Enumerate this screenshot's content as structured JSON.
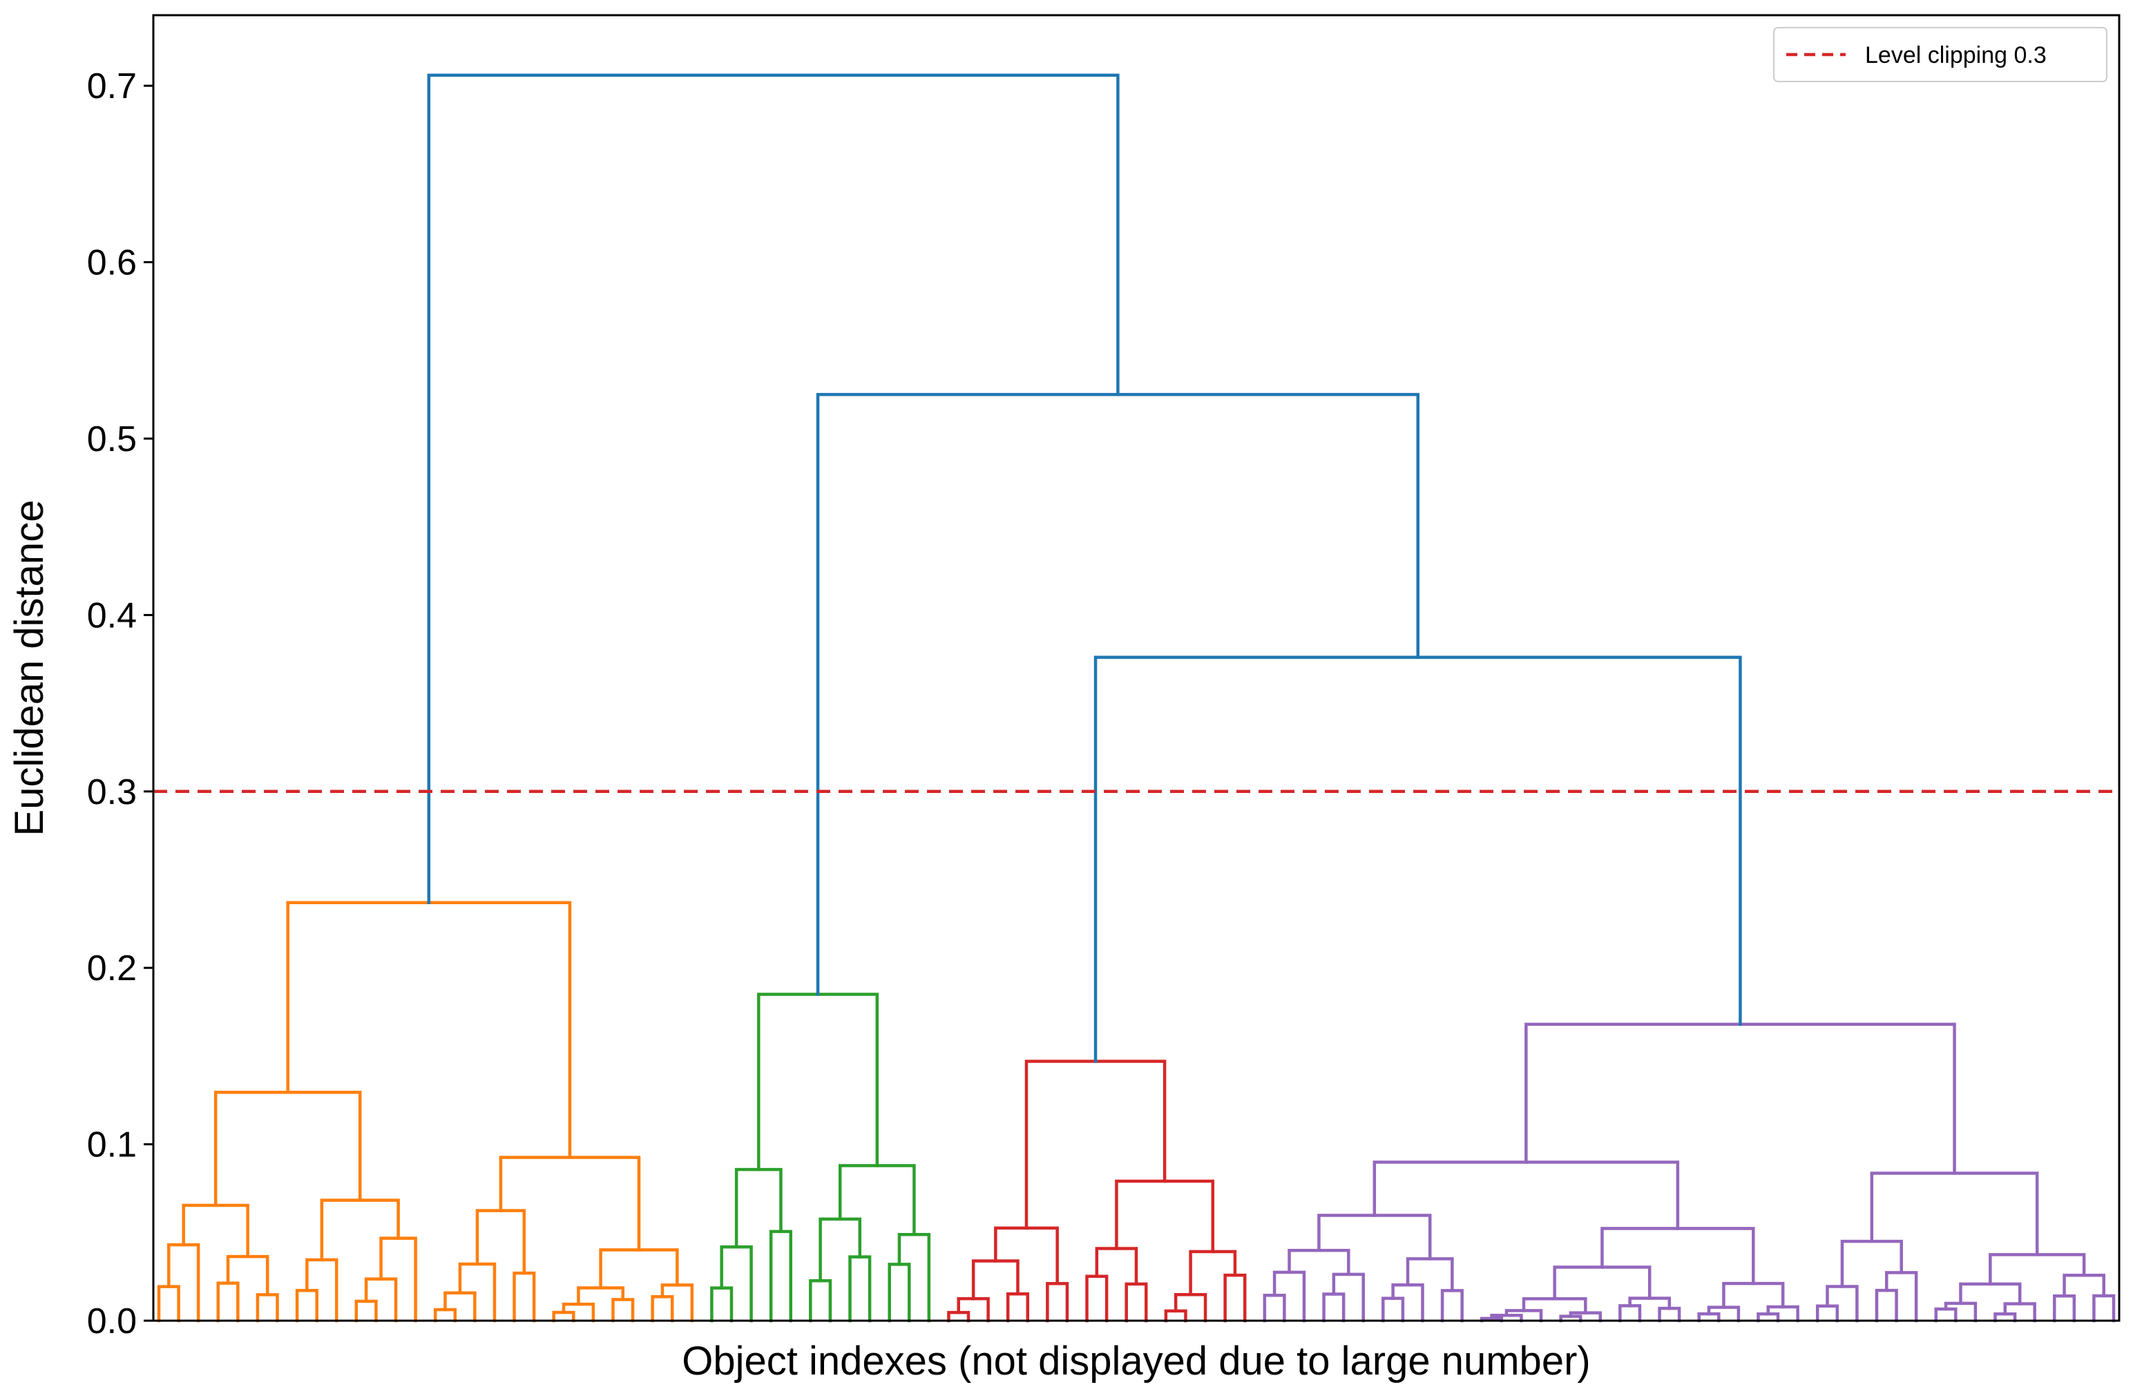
{
  "chart_data": {
    "type": "dendrogram",
    "title": "",
    "xlabel": "Object indexes (not displayed due to large number)",
    "ylabel": "Euclidean distance",
    "ylim": [
      0,
      0.74
    ],
    "yticks": [
      "0.0",
      "0.1",
      "0.2",
      "0.3",
      "0.4",
      "0.5",
      "0.6",
      "0.7"
    ],
    "ytick_values": [
      0,
      0.1,
      0.2,
      0.3,
      0.4,
      0.5,
      0.6,
      0.7
    ],
    "threshold": {
      "value": 0.3,
      "label": "Level clipping 0.3",
      "color": "#d62728",
      "style": "dashed"
    },
    "legend_position": "top-right",
    "colors": {
      "link": "#1f77b4",
      "cluster_1": "#ff7f0e",
      "cluster_2": "#2ca02c",
      "cluster_3": "#d62728",
      "cluster_4": "#9467bd"
    },
    "clusters": [
      {
        "name": "cluster_1",
        "color": "#ff7f0e",
        "x_range": [
          0,
          27
        ],
        "merge_height": 0.237
      },
      {
        "name": "cluster_2",
        "color": "#2ca02c",
        "x_range": [
          28,
          39
        ],
        "merge_height": 0.185
      },
      {
        "name": "cluster_3",
        "color": "#d62728",
        "x_range": [
          40,
          55
        ],
        "merge_height": 0.147
      },
      {
        "name": "cluster_4",
        "color": "#9467bd",
        "x_range": [
          56,
          99
        ],
        "merge_height": 0.168
      }
    ],
    "top_merges": [
      {
        "heights": [
          0.168,
          0.147
        ],
        "merge_height": 0.376
      },
      {
        "heights": [
          0.376,
          0.185
        ],
        "merge_height": 0.525
      },
      {
        "heights": [
          0.525,
          0.237
        ],
        "merge_height": 0.706
      }
    ]
  }
}
